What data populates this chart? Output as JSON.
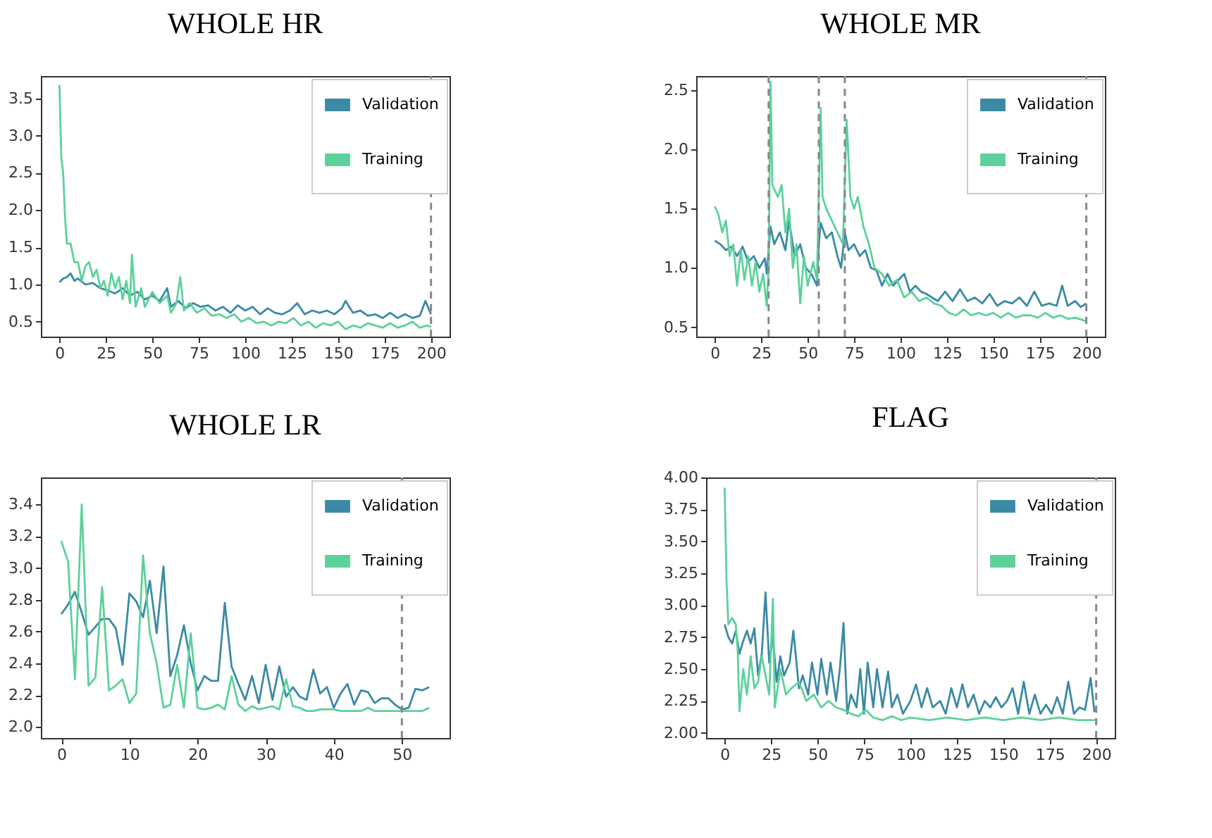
{
  "chart_data": [
    {
      "type": "line",
      "title": "WHOLE HR",
      "legend": "top right",
      "grid": false,
      "xlim": [
        -10,
        210
      ],
      "xticks": [
        0,
        25,
        50,
        75,
        100,
        125,
        150,
        175,
        200
      ],
      "ylim": [
        0.3,
        3.8
      ],
      "yticks": [
        0.5,
        {
          "value": 1,
          "label": "1.0"
        },
        1.5,
        {
          "value": 2,
          "label": "2.0"
        },
        2.5,
        {
          "value": 3,
          "label": "3.0"
        },
        3.5
      ],
      "ref_lines": [
        {
          "axis": "x",
          "value": 200,
          "line_style": "dashed",
          "color": "#888888"
        }
      ],
      "series": [
        {
          "name": "Validation",
          "color": "#3b8aa5",
          "x": [
            0,
            2,
            4,
            6,
            8,
            10,
            14,
            18,
            22,
            26,
            30,
            34,
            38,
            42,
            46,
            50,
            54,
            58,
            60,
            64,
            68,
            72,
            76,
            80,
            84,
            88,
            92,
            96,
            100,
            104,
            108,
            112,
            116,
            120,
            124,
            128,
            132,
            136,
            140,
            144,
            148,
            152,
            154,
            158,
            162,
            166,
            170,
            174,
            178,
            182,
            186,
            190,
            194,
            197,
            200
          ],
          "values": [
            1.03,
            1.08,
            1.1,
            1.15,
            1.05,
            1.08,
            1.0,
            1.02,
            0.95,
            0.92,
            0.88,
            0.95,
            0.85,
            0.9,
            0.8,
            0.85,
            0.78,
            0.95,
            0.7,
            0.78,
            0.68,
            0.75,
            0.7,
            0.72,
            0.65,
            0.7,
            0.62,
            0.72,
            0.65,
            0.7,
            0.6,
            0.68,
            0.62,
            0.6,
            0.65,
            0.75,
            0.6,
            0.65,
            0.62,
            0.65,
            0.6,
            0.68,
            0.78,
            0.62,
            0.65,
            0.58,
            0.6,
            0.55,
            0.62,
            0.55,
            0.6,
            0.55,
            0.58,
            0.78,
            0.6
          ]
        },
        {
          "name": "Training",
          "color": "#5dd19a",
          "x": [
            0,
            1,
            2,
            3,
            4,
            6,
            8,
            10,
            12,
            14,
            16,
            18,
            20,
            22,
            24,
            26,
            28,
            30,
            32,
            34,
            36,
            38,
            39,
            41,
            44,
            46,
            50,
            54,
            58,
            60,
            63,
            65,
            67,
            70,
            74,
            78,
            82,
            86,
            90,
            94,
            98,
            102,
            106,
            110,
            114,
            118,
            122,
            126,
            130,
            134,
            138,
            142,
            146,
            150,
            154,
            158,
            162,
            166,
            170,
            174,
            178,
            182,
            186,
            190,
            194,
            198,
            200
          ],
          "values": [
            3.68,
            2.7,
            2.5,
            1.9,
            1.55,
            1.55,
            1.3,
            1.3,
            1.05,
            1.25,
            1.3,
            1.1,
            1.2,
            0.95,
            1.05,
            0.85,
            1.15,
            0.95,
            1.1,
            0.8,
            1.05,
            0.75,
            1.4,
            0.7,
            0.95,
            0.7,
            0.9,
            0.75,
            0.85,
            0.62,
            0.75,
            1.1,
            0.65,
            0.75,
            0.62,
            0.68,
            0.58,
            0.6,
            0.55,
            0.6,
            0.5,
            0.55,
            0.48,
            0.5,
            0.45,
            0.5,
            0.48,
            0.55,
            0.45,
            0.5,
            0.42,
            0.48,
            0.45,
            0.5,
            0.4,
            0.45,
            0.42,
            0.48,
            0.45,
            0.42,
            0.48,
            0.42,
            0.45,
            0.5,
            0.42,
            0.45,
            0.43
          ]
        }
      ]
    },
    {
      "type": "line",
      "title": "WHOLE MR",
      "legend": "top right",
      "grid": false,
      "xlim": [
        -10,
        210
      ],
      "xticks": [
        0,
        25,
        50,
        75,
        100,
        125,
        150,
        175,
        200
      ],
      "ylim": [
        0.42,
        2.62
      ],
      "yticks": [
        0.5,
        {
          "value": 1,
          "label": "1.0"
        },
        1.5,
        {
          "value": 2,
          "label": "2.0"
        },
        2.5
      ],
      "ref_lines": [
        {
          "axis": "x",
          "value": 29,
          "line_style": "dashed",
          "color": "#888888"
        },
        {
          "axis": "x",
          "value": 56,
          "line_style": "dashed",
          "color": "#888888"
        },
        {
          "axis": "x",
          "value": 70,
          "line_style": "dashed",
          "color": "#888888"
        },
        {
          "axis": "x",
          "value": 200,
          "line_style": "dashed",
          "color": "#888888"
        }
      ],
      "series": [
        {
          "name": "Validation",
          "color": "#3b8aa5",
          "x": [
            0,
            3,
            6,
            9,
            12,
            15,
            18,
            21,
            24,
            27,
            28,
            30,
            32,
            35,
            38,
            40,
            43,
            46,
            49,
            52,
            55,
            56,
            57,
            60,
            63,
            66,
            68,
            70,
            72,
            75,
            78,
            81,
            84,
            87,
            90,
            93,
            96,
            99,
            102,
            105,
            108,
            111,
            114,
            117,
            120,
            124,
            128,
            132,
            136,
            140,
            144,
            148,
            152,
            156,
            160,
            164,
            168,
            172,
            176,
            180,
            184,
            187,
            190,
            194,
            197,
            200
          ],
          "values": [
            1.23,
            1.2,
            1.15,
            1.18,
            1.1,
            1.18,
            1.05,
            1.1,
            1.0,
            1.08,
            0.95,
            1.35,
            1.2,
            1.3,
            1.15,
            1.4,
            1.1,
            1.2,
            1.0,
            0.95,
            0.85,
            1.2,
            1.38,
            1.25,
            1.3,
            1.1,
            1.0,
            1.3,
            1.15,
            1.2,
            1.1,
            1.15,
            1.0,
            0.98,
            0.85,
            0.95,
            0.85,
            0.9,
            0.95,
            0.8,
            0.85,
            0.8,
            0.78,
            0.75,
            0.72,
            0.8,
            0.72,
            0.82,
            0.72,
            0.75,
            0.7,
            0.78,
            0.68,
            0.72,
            0.7,
            0.75,
            0.68,
            0.8,
            0.68,
            0.7,
            0.68,
            0.85,
            0.68,
            0.72,
            0.67,
            0.7
          ]
        },
        {
          "name": "Training",
          "color": "#5dd19a",
          "x": [
            0,
            2,
            4,
            6,
            8,
            10,
            12,
            14,
            16,
            18,
            20,
            22,
            24,
            26,
            28,
            29,
            30,
            31,
            34,
            36,
            38,
            40,
            42,
            44,
            46,
            48,
            50,
            53,
            55,
            57,
            58,
            60,
            63,
            66,
            69,
            71,
            73,
            75,
            77,
            80,
            83,
            86,
            90,
            94,
            98,
            102,
            106,
            110,
            114,
            118,
            122,
            126,
            130,
            134,
            138,
            142,
            146,
            150,
            154,
            158,
            162,
            166,
            170,
            174,
            178,
            182,
            186,
            190,
            194,
            200
          ],
          "values": [
            1.52,
            1.45,
            1.3,
            1.4,
            1.1,
            1.2,
            0.85,
            1.15,
            0.9,
            1.1,
            0.85,
            1.05,
            0.8,
            0.95,
            0.68,
            1.0,
            2.57,
            1.7,
            1.6,
            1.7,
            1.3,
            1.5,
            1.0,
            1.2,
            0.7,
            1.1,
            0.85,
            1.05,
            0.9,
            2.35,
            1.6,
            1.5,
            1.4,
            1.3,
            1.2,
            2.25,
            1.6,
            1.5,
            1.6,
            1.35,
            1.2,
            1.0,
            0.95,
            0.85,
            0.9,
            0.75,
            0.8,
            0.72,
            0.75,
            0.7,
            0.68,
            0.62,
            0.6,
            0.65,
            0.6,
            0.62,
            0.6,
            0.62,
            0.58,
            0.62,
            0.58,
            0.6,
            0.6,
            0.58,
            0.62,
            0.58,
            0.6,
            0.57,
            0.58,
            0.55
          ]
        }
      ]
    },
    {
      "type": "line",
      "title": "WHOLE LR",
      "legend": "top right",
      "grid": false,
      "xlim": [
        -3,
        57
      ],
      "xticks": [
        0,
        10,
        20,
        30,
        40,
        50
      ],
      "ylim": [
        1.93,
        3.57
      ],
      "yticks": [
        {
          "value": 2,
          "label": "2.0"
        },
        2.2,
        2.4,
        2.6,
        2.8,
        {
          "value": 3,
          "label": "3.0"
        },
        3.2,
        3.4
      ],
      "ref_lines": [
        {
          "axis": "x",
          "value": 50,
          "line_style": "dashed",
          "color": "#888888"
        }
      ],
      "series": [
        {
          "name": "Validation",
          "color": "#3b8aa5",
          "x": [
            0,
            1,
            2,
            3,
            4,
            5,
            6,
            7,
            8,
            9,
            10,
            11,
            12,
            13,
            14,
            15,
            16,
            17,
            18,
            19,
            20,
            21,
            22,
            23,
            24,
            25,
            26,
            27,
            28,
            29,
            30,
            31,
            32,
            33,
            34,
            35,
            36,
            37,
            38,
            39,
            40,
            41,
            42,
            43,
            44,
            45,
            46,
            47,
            48,
            49,
            50,
            51,
            52,
            53,
            54
          ],
          "values": [
            2.71,
            2.77,
            2.85,
            2.72,
            2.58,
            2.63,
            2.68,
            2.68,
            2.62,
            2.39,
            2.84,
            2.79,
            2.69,
            2.92,
            2.59,
            3.01,
            2.32,
            2.45,
            2.64,
            2.4,
            2.23,
            2.32,
            2.29,
            2.29,
            2.78,
            2.38,
            2.27,
            2.17,
            2.32,
            2.15,
            2.39,
            2.17,
            2.38,
            2.19,
            2.25,
            2.19,
            2.17,
            2.36,
            2.21,
            2.25,
            2.12,
            2.21,
            2.27,
            2.14,
            2.23,
            2.22,
            2.15,
            2.18,
            2.18,
            2.14,
            2.11,
            2.12,
            2.24,
            2.23,
            2.25
          ]
        },
        {
          "name": "Training",
          "color": "#5dd19a",
          "x": [
            0,
            1,
            2,
            3,
            4,
            5,
            6,
            7,
            8,
            9,
            10,
            11,
            12,
            13,
            14,
            15,
            16,
            17,
            18,
            19,
            20,
            21,
            22,
            23,
            24,
            25,
            26,
            27,
            28,
            29,
            30,
            31,
            32,
            33,
            34,
            35,
            36,
            37,
            38,
            39,
            40,
            41,
            42,
            43,
            44,
            45,
            46,
            47,
            48,
            49,
            50,
            51,
            52,
            53,
            54
          ],
          "values": [
            3.17,
            3.04,
            2.3,
            3.4,
            2.26,
            2.31,
            2.88,
            2.23,
            2.26,
            2.3,
            2.15,
            2.21,
            3.08,
            2.59,
            2.4,
            2.12,
            2.14,
            2.39,
            2.12,
            2.59,
            2.12,
            2.11,
            2.12,
            2.14,
            2.11,
            2.32,
            2.14,
            2.1,
            2.13,
            2.11,
            2.12,
            2.13,
            2.11,
            2.3,
            2.13,
            2.12,
            2.1,
            2.1,
            2.11,
            2.11,
            2.11,
            2.1,
            2.1,
            2.1,
            2.1,
            2.12,
            2.1,
            2.1,
            2.1,
            2.1,
            2.1,
            2.1,
            2.1,
            2.1,
            2.12
          ]
        }
      ]
    },
    {
      "type": "line",
      "title": "FLAG",
      "legend": "top right",
      "grid": false,
      "xlim": [
        -10,
        210
      ],
      "xticks": [
        0,
        25,
        50,
        75,
        100,
        125,
        150,
        175,
        200
      ],
      "ylim": [
        1.96,
        4.0
      ],
      "yticks": [
        {
          "value": 2,
          "label": "2.00"
        },
        2.25,
        {
          "value": 2.5,
          "label": "2.50"
        },
        2.75,
        {
          "value": 3,
          "label": "3.00"
        },
        3.25,
        {
          "value": 3.5,
          "label": "3.50"
        },
        3.75,
        {
          "value": 4,
          "label": "4.00"
        }
      ],
      "ref_lines": [
        {
          "axis": "x",
          "value": 200,
          "line_style": "dashed",
          "color": "#888888"
        }
      ],
      "series": [
        {
          "name": "Validation",
          "color": "#3b8aa5",
          "x": [
            0,
            2,
            4,
            6,
            8,
            10,
            12,
            14,
            16,
            18,
            20,
            22,
            24,
            26,
            28,
            30,
            32,
            35,
            37,
            40,
            42,
            45,
            47,
            50,
            52,
            55,
            57,
            60,
            62,
            64,
            66,
            68,
            71,
            73,
            75,
            77,
            80,
            82,
            85,
            88,
            90,
            93,
            96,
            100,
            103,
            106,
            109,
            112,
            116,
            119,
            122,
            125,
            128,
            131,
            134,
            137,
            140,
            143,
            146,
            149,
            152,
            155,
            158,
            161,
            164,
            167,
            170,
            173,
            176,
            179,
            182,
            185,
            188,
            191,
            194,
            197,
            199,
            200
          ],
          "values": [
            2.85,
            2.75,
            2.7,
            2.8,
            2.62,
            2.72,
            2.8,
            2.7,
            2.82,
            2.45,
            2.62,
            3.1,
            2.55,
            2.75,
            2.4,
            2.6,
            2.45,
            2.55,
            2.8,
            2.35,
            2.45,
            2.3,
            2.55,
            2.3,
            2.58,
            2.3,
            2.55,
            2.25,
            2.5,
            2.86,
            2.15,
            2.3,
            2.2,
            2.5,
            2.15,
            2.55,
            2.2,
            2.5,
            2.2,
            2.48,
            2.2,
            2.3,
            2.15,
            2.25,
            2.38,
            2.2,
            2.35,
            2.2,
            2.25,
            2.15,
            2.35,
            2.2,
            2.38,
            2.2,
            2.3,
            2.15,
            2.25,
            2.2,
            2.28,
            2.2,
            2.25,
            2.35,
            2.15,
            2.4,
            2.15,
            2.3,
            2.15,
            2.22,
            2.15,
            2.28,
            2.15,
            2.4,
            2.15,
            2.2,
            2.18,
            2.43,
            2.17,
            2.18
          ]
        },
        {
          "name": "Training",
          "color": "#5dd19a",
          "x": [
            0,
            1,
            2,
            4,
            6,
            7,
            8,
            10,
            12,
            14,
            16,
            18,
            20,
            22,
            24,
            26,
            27,
            30,
            33,
            36,
            40,
            44,
            48,
            52,
            56,
            60,
            64,
            68,
            72,
            76,
            80,
            85,
            90,
            95,
            100,
            110,
            120,
            130,
            140,
            150,
            160,
            170,
            180,
            190,
            200
          ],
          "values": [
            3.92,
            3.2,
            2.85,
            2.9,
            2.85,
            2.65,
            2.17,
            2.5,
            2.3,
            2.6,
            2.35,
            2.4,
            2.6,
            2.45,
            2.3,
            3.05,
            2.2,
            2.5,
            2.3,
            2.35,
            2.4,
            2.25,
            2.3,
            2.2,
            2.25,
            2.2,
            2.18,
            2.15,
            2.13,
            2.18,
            2.12,
            2.1,
            2.13,
            2.1,
            2.12,
            2.1,
            2.12,
            2.1,
            2.12,
            2.1,
            2.12,
            2.1,
            2.12,
            2.1,
            2.1
          ]
        }
      ]
    }
  ]
}
